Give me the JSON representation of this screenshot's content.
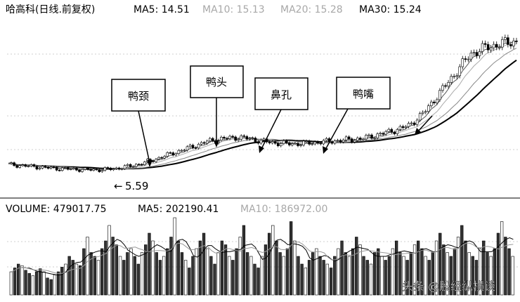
{
  "chart_data": [
    {
      "type": "candlestick",
      "header": {
        "stock": "哈高科(日线.前复权)",
        "ma5": "MA5: 14.51",
        "ma10": "MA10: 15.13",
        "ma20": "MA20: 15.28",
        "ma30": "MA30: 15.24"
      },
      "low_annotation": "5.59",
      "callouts": [
        "鸭颈",
        "鸭头",
        "鼻孔",
        "鸭嘴"
      ],
      "price_path": [
        6.0,
        5.9,
        5.8,
        5.7,
        5.65,
        5.6,
        5.59,
        5.7,
        5.9,
        6.2,
        6.6,
        7.0,
        7.4,
        7.8,
        8.0,
        8.1,
        7.9,
        7.7,
        7.6,
        7.6,
        7.7,
        7.8,
        7.9,
        8.0,
        8.3,
        8.6,
        9.0,
        10.0,
        11.5,
        13.0,
        14.5,
        15.0,
        15.3,
        15.5
      ]
    },
    {
      "type": "bar",
      "header": {
        "volume": "VOLUME: 479017.75",
        "ma5": "MA5: 202190.41",
        "ma10": "MA10: 186972.00"
      },
      "values": [
        0.3,
        0.35,
        0.4,
        0.38,
        0.32,
        0.28,
        0.25,
        0.3,
        0.34,
        0.3,
        0.22,
        0.2,
        0.26,
        0.3,
        0.36,
        0.4,
        0.5,
        0.45,
        0.4,
        0.38,
        0.6,
        0.75,
        0.55,
        0.5,
        0.45,
        0.6,
        0.7,
        0.9,
        0.75,
        0.65,
        0.5,
        0.45,
        0.55,
        0.6,
        0.5,
        0.4,
        0.55,
        0.65,
        0.8,
        0.7,
        0.55,
        0.45,
        0.5,
        0.6,
        0.75,
        1.0,
        0.7,
        0.55,
        0.45,
        0.35,
        0.5,
        0.6,
        0.7,
        0.8,
        0.6,
        0.5,
        0.4,
        0.55,
        0.7,
        0.65,
        0.5,
        0.45,
        0.6,
        0.75,
        0.9,
        0.55,
        0.5,
        0.4,
        0.35,
        0.5,
        0.65,
        0.8,
        0.9,
        0.7,
        0.55,
        0.5,
        0.6,
        0.95,
        0.7,
        0.5,
        0.4,
        0.35,
        0.45,
        0.55,
        0.6,
        0.5,
        0.45,
        0.4,
        0.35,
        0.5,
        0.6,
        0.7,
        0.55,
        0.5,
        0.6,
        0.75,
        0.65,
        0.5,
        0.45,
        0.4,
        0.55,
        0.6,
        0.5,
        0.45,
        0.5,
        0.6,
        0.7,
        0.55,
        0.5,
        0.45,
        0.55,
        0.65,
        0.7,
        0.6,
        0.5,
        0.45,
        0.55,
        0.7,
        0.8,
        0.65,
        0.55,
        0.5,
        0.6,
        0.75,
        0.9,
        0.7,
        0.55,
        0.5,
        0.45,
        0.6,
        0.7,
        0.55,
        0.5,
        0.6,
        0.8,
        0.95,
        0.75,
        0.6,
        0.5
      ]
    }
  ],
  "watermark": "头条 @股经纵横谈",
  "colors": {
    "background": "#ffffff",
    "text": "#000000",
    "muted": "#a8a8a8",
    "gridline": "#cfcfcf"
  }
}
